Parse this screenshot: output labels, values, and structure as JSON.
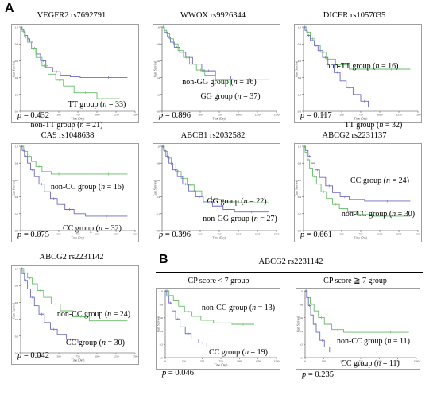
{
  "panel_a": {
    "letter": "A"
  },
  "panel_b": {
    "letter": "B",
    "title": "ABCG2 rs2231142",
    "subtitles": [
      "CP score < 7 group",
      "CP score ≧ 7 group"
    ]
  },
  "axes": {
    "ylabel": "Cum Survival",
    "xlabel": "Time (Day)"
  },
  "colors": {
    "blue": "#6b6bc0",
    "green": "#66bb66",
    "frame": "#777777"
  },
  "chart_data": [
    {
      "type": "line",
      "title": "VEGFR2 rs7692791",
      "p": "p = 0.432",
      "ylim": [
        0,
        1
      ],
      "xlim": [
        0,
        1500
      ],
      "xticks": [
        0,
        250,
        500,
        750,
        1000,
        1250,
        1500
      ],
      "yticks": [
        0,
        0.2,
        0.4,
        0.6,
        0.8,
        1.0
      ],
      "series": [
        {
          "name": "TT group (n = 33)",
          "color": "blue",
          "x": [
            0,
            15,
            40,
            60,
            90,
            120,
            160,
            200,
            260,
            330,
            420,
            520,
            650,
            780,
            900,
            1400
          ],
          "y": [
            1.0,
            0.97,
            0.94,
            0.9,
            0.86,
            0.82,
            0.75,
            0.68,
            0.6,
            0.52,
            0.47,
            0.43,
            0.41,
            0.4,
            0.4,
            0.4
          ]
        },
        {
          "name": "non-TT group (n = 21)",
          "color": "green",
          "x": [
            0,
            20,
            50,
            90,
            140,
            200,
            280,
            360,
            460,
            560,
            700,
            1000,
            1300
          ],
          "y": [
            1.0,
            0.95,
            0.88,
            0.82,
            0.74,
            0.64,
            0.54,
            0.44,
            0.37,
            0.3,
            0.22,
            0.15,
            0.15
          ]
        }
      ]
    },
    {
      "type": "line",
      "title": "WWOX rs9926344",
      "p": "p = 0.896",
      "ylim": [
        0,
        1
      ],
      "xlim": [
        0,
        1500
      ],
      "xticks": [
        0,
        250,
        500,
        750,
        1000,
        1250,
        1500
      ],
      "yticks": [
        0,
        0.2,
        0.4,
        0.6,
        0.8,
        1.0
      ],
      "series": [
        {
          "name": "non-GG group (n = 16)",
          "color": "blue",
          "x": [
            0,
            30,
            70,
            110,
            160,
            230,
            310,
            400,
            520,
            700,
            900,
            1400
          ],
          "y": [
            1.0,
            0.94,
            0.88,
            0.82,
            0.76,
            0.7,
            0.64,
            0.56,
            0.48,
            0.42,
            0.38,
            0.38
          ]
        },
        {
          "name": "GG group (n = 37)",
          "color": "green",
          "x": [
            0,
            25,
            60,
            100,
            150,
            210,
            280,
            360,
            450,
            560,
            700,
            900
          ],
          "y": [
            1.0,
            0.96,
            0.92,
            0.86,
            0.8,
            0.72,
            0.64,
            0.56,
            0.49,
            0.43,
            0.37,
            0.3
          ]
        }
      ]
    },
    {
      "type": "line",
      "title": "DICER rs1057035",
      "p": "p = 0.117",
      "ylim": [
        0,
        1
      ],
      "xlim": [
        0,
        1500
      ],
      "xticks": [
        0,
        250,
        500,
        750,
        1000,
        1250,
        1500
      ],
      "yticks": [
        0,
        0.2,
        0.4,
        0.6,
        0.8,
        1.0
      ],
      "series": [
        {
          "name": "non-TT group (n = 16)",
          "color": "green",
          "x": [
            0,
            40,
            90,
            150,
            220,
            300,
            420,
            600,
            900,
            1400
          ],
          "y": [
            1.0,
            0.94,
            0.86,
            0.78,
            0.7,
            0.62,
            0.55,
            0.5,
            0.5,
            0.5
          ]
        },
        {
          "name": "TT group (n = 32)",
          "color": "blue",
          "x": [
            0,
            20,
            50,
            90,
            140,
            190,
            250,
            320,
            400,
            480,
            560,
            650,
            750,
            850
          ],
          "y": [
            1.0,
            0.96,
            0.9,
            0.84,
            0.78,
            0.72,
            0.64,
            0.56,
            0.46,
            0.36,
            0.28,
            0.2,
            0.12,
            0.05
          ]
        }
      ]
    },
    {
      "type": "line",
      "title": "CA9 rs1048638",
      "p": "p = 0.075",
      "ylim": [
        0,
        1
      ],
      "xlim": [
        0,
        1500
      ],
      "xticks": [
        0,
        250,
        500,
        750,
        1000,
        1250,
        1500
      ],
      "yticks": [
        0,
        0.2,
        0.4,
        0.6,
        0.8,
        1.0
      ],
      "series": [
        {
          "name": "non-CC group (n = 16)",
          "color": "green",
          "x": [
            0,
            40,
            90,
            140,
            200,
            280,
            400,
            600,
            900,
            1400
          ],
          "y": [
            1.0,
            0.94,
            0.88,
            0.82,
            0.76,
            0.7,
            0.67,
            0.67,
            0.67,
            0.67
          ]
        },
        {
          "name": "CC group (n = 32)",
          "color": "blue",
          "x": [
            0,
            20,
            50,
            90,
            130,
            180,
            240,
            310,
            390,
            480,
            580,
            700,
            850,
            1400
          ],
          "y": [
            1.0,
            0.95,
            0.88,
            0.8,
            0.72,
            0.64,
            0.55,
            0.46,
            0.38,
            0.31,
            0.25,
            0.2,
            0.17,
            0.17
          ]
        }
      ]
    },
    {
      "type": "line",
      "title": "ABCB1 rs2032582",
      "p": "p = 0.396",
      "ylim": [
        0,
        1
      ],
      "xlim": [
        0,
        1500
      ],
      "xticks": [
        0,
        250,
        500,
        750,
        1000,
        1250,
        1500
      ],
      "yticks": [
        0,
        0.2,
        0.4,
        0.6,
        0.8,
        1.0
      ],
      "series": [
        {
          "name": "GG group (n = 22)",
          "color": "green",
          "x": [
            0,
            30,
            70,
            120,
            180,
            250,
            330,
            420,
            520,
            650,
            800,
            1000,
            1400
          ],
          "y": [
            1.0,
            0.94,
            0.86,
            0.78,
            0.7,
            0.62,
            0.54,
            0.47,
            0.41,
            0.37,
            0.34,
            0.33,
            0.33
          ]
        },
        {
          "name": "non-GG group (n = 27)",
          "color": "blue",
          "x": [
            0,
            20,
            50,
            90,
            140,
            200,
            270,
            350,
            440,
            540,
            660,
            800,
            950,
            1400
          ],
          "y": [
            1.0,
            0.95,
            0.88,
            0.8,
            0.72,
            0.64,
            0.55,
            0.47,
            0.4,
            0.34,
            0.29,
            0.25,
            0.22,
            0.22
          ]
        }
      ]
    },
    {
      "type": "line",
      "title": "ABCG2 rs2231137",
      "p": "p = 0.061",
      "ylim": [
        0,
        1
      ],
      "xlim": [
        0,
        1500
      ],
      "xticks": [
        0,
        250,
        500,
        750,
        1000,
        1250,
        1500
      ],
      "yticks": [
        0,
        0.2,
        0.4,
        0.6,
        0.8,
        1.0
      ],
      "series": [
        {
          "name": "CC group (n = 24)",
          "color": "blue",
          "x": [
            0,
            25,
            60,
            100,
            150,
            210,
            290,
            380,
            480,
            600,
            800,
            1400
          ],
          "y": [
            1.0,
            0.95,
            0.88,
            0.8,
            0.72,
            0.63,
            0.53,
            0.45,
            0.4,
            0.37,
            0.35,
            0.35
          ]
        },
        {
          "name": "non-CC group (n = 30)",
          "color": "green",
          "x": [
            0,
            20,
            45,
            80,
            120,
            170,
            230,
            300,
            380,
            470,
            580,
            720,
            900,
            1400
          ],
          "y": [
            1.0,
            0.93,
            0.84,
            0.74,
            0.64,
            0.55,
            0.46,
            0.38,
            0.31,
            0.26,
            0.22,
            0.19,
            0.17,
            0.17
          ]
        }
      ]
    },
    {
      "type": "line",
      "title": "ABCG2 rs2231142",
      "p": "p = 0.042",
      "ylim": [
        0,
        1
      ],
      "xlim": [
        0,
        1500
      ],
      "xticks": [
        0,
        250,
        500,
        750,
        1000,
        1250,
        1500
      ],
      "yticks": [
        0,
        0.2,
        0.4,
        0.6,
        0.8,
        1.0
      ],
      "series": [
        {
          "name": "non-CC group (n = 24)",
          "color": "green",
          "x": [
            0,
            40,
            90,
            150,
            220,
            300,
            400,
            520,
            680,
            900,
            1400
          ],
          "y": [
            1.0,
            0.95,
            0.89,
            0.82,
            0.74,
            0.66,
            0.58,
            0.5,
            0.43,
            0.38,
            0.38
          ]
        },
        {
          "name": "CC group (n = 30)",
          "color": "blue",
          "x": [
            0,
            20,
            50,
            90,
            130,
            180,
            240,
            310,
            390,
            480,
            600,
            750
          ],
          "y": [
            1.0,
            0.94,
            0.86,
            0.76,
            0.66,
            0.56,
            0.46,
            0.36,
            0.28,
            0.22,
            0.16,
            0.12
          ]
        }
      ]
    },
    {
      "type": "line",
      "title": "",
      "p": "p = 0.046",
      "ylim": [
        0,
        1
      ],
      "xlim": [
        0,
        1500
      ],
      "xticks": [
        0,
        250,
        500,
        750,
        1000,
        1250,
        1500
      ],
      "yticks": [
        0,
        0.2,
        0.4,
        0.6,
        0.8,
        1.0
      ],
      "series": [
        {
          "name": "non-CC group (n = 13)",
          "color": "green",
          "x": [
            0,
            50,
            110,
            180,
            260,
            360,
            480,
            650,
            900,
            1200
          ],
          "y": [
            1.0,
            0.93,
            0.85,
            0.77,
            0.69,
            0.62,
            0.56,
            0.52,
            0.5,
            0.5
          ]
        },
        {
          "name": "CC group (n = 19)",
          "color": "blue",
          "x": [
            0,
            20,
            50,
            90,
            140,
            200,
            270,
            350,
            450,
            560
          ],
          "y": [
            1.0,
            0.92,
            0.82,
            0.7,
            0.58,
            0.46,
            0.36,
            0.28,
            0.22,
            0.16
          ]
        }
      ]
    },
    {
      "type": "line",
      "title": "",
      "p": "p = 0.235",
      "ylim": [
        0,
        1
      ],
      "xlim": [
        0,
        1500
      ],
      "xticks": [
        0,
        250,
        500,
        750,
        1000,
        1250,
        1500
      ],
      "yticks": [
        0,
        0.2,
        0.4,
        0.6,
        0.8,
        1.0
      ],
      "series": [
        {
          "name": "non-CC group (n = 11)",
          "color": "green",
          "x": [
            0,
            30,
            70,
            120,
            180,
            260,
            360,
            520,
            900,
            1400
          ],
          "y": [
            1.0,
            0.9,
            0.8,
            0.7,
            0.6,
            0.5,
            0.42,
            0.38,
            0.38,
            0.38
          ]
        },
        {
          "name": "CC group (n = 11)",
          "color": "blue",
          "x": [
            0,
            20,
            45,
            75,
            110,
            150,
            200,
            260,
            330
          ],
          "y": [
            1.0,
            0.9,
            0.78,
            0.64,
            0.5,
            0.38,
            0.26,
            0.16,
            0.08
          ]
        }
      ]
    }
  ]
}
